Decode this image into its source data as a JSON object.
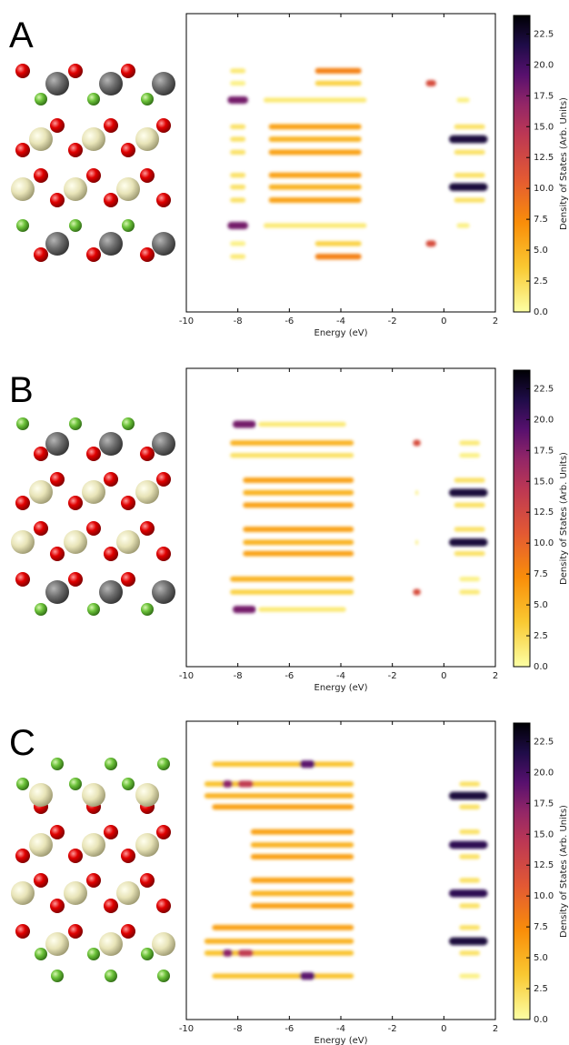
{
  "chart_data": [
    {
      "type": "heatmap",
      "label": "A",
      "xlabel": "Energy (eV)",
      "colorbar_label": "Density of States (Arb. Units)",
      "xlim": [
        -10,
        2
      ],
      "xticks": [
        -10,
        -8,
        -6,
        -4,
        -2,
        0,
        2
      ],
      "ylim": [
        0,
        24
      ],
      "clim": [
        0,
        24
      ],
      "cticks": [
        {
          "value": 0,
          "label": "0.0"
        },
        2.5,
        {
          "value": 5,
          "label": "5.0"
        },
        7.5,
        {
          "value": 10,
          "label": "10.0"
        },
        12.5,
        {
          "value": 15,
          "label": "15.0"
        },
        17.5,
        {
          "value": 20,
          "label": "20.0"
        },
        22.5
      ],
      "bands": [
        {
          "y": 19.4,
          "xmin": -8.3,
          "xmax": -7.7,
          "value": 1.5
        },
        {
          "y": 19.4,
          "xmin": -5,
          "xmax": -3.2,
          "value": 8
        },
        {
          "y": 18.4,
          "xmin": -8.3,
          "xmax": -7.7,
          "value": 1
        },
        {
          "y": 18.4,
          "xmin": -5,
          "xmax": -3.2,
          "value": 3
        },
        {
          "y": 18.4,
          "xmin": -0.7,
          "xmax": -0.3,
          "value": 12
        },
        {
          "y": 17.05,
          "xmin": -8.4,
          "xmax": -7.6,
          "value": 18
        },
        {
          "y": 17.05,
          "xmin": -7,
          "xmax": -3,
          "value": 1.5
        },
        {
          "y": 17.05,
          "xmin": 0.5,
          "xmax": 1,
          "value": 1
        },
        {
          "y": 14.9,
          "xmin": -8.3,
          "xmax": -7.7,
          "value": 2
        },
        {
          "y": 14.9,
          "xmin": -6.8,
          "xmax": -3.2,
          "value": 6
        },
        {
          "y": 14.9,
          "xmin": 0.4,
          "xmax": 1.6,
          "value": 2
        },
        {
          "y": 13.9,
          "xmin": -8.3,
          "xmax": -7.7,
          "value": 2
        },
        {
          "y": 13.9,
          "xmin": -6.8,
          "xmax": -3.2,
          "value": 5
        },
        {
          "y": 13.9,
          "xmin": 0.2,
          "xmax": 1.7,
          "value": 22
        },
        {
          "y": 12.85,
          "xmin": -8.3,
          "xmax": -7.7,
          "value": 2
        },
        {
          "y": 12.85,
          "xmin": -6.8,
          "xmax": -3.2,
          "value": 6
        },
        {
          "y": 12.85,
          "xmin": 0.4,
          "xmax": 1.6,
          "value": 2
        },
        {
          "y": 11.0,
          "xmin": -8.3,
          "xmax": -7.7,
          "value": 2
        },
        {
          "y": 11.0,
          "xmin": -6.8,
          "xmax": -3.2,
          "value": 6
        },
        {
          "y": 11.0,
          "xmin": 0.4,
          "xmax": 1.6,
          "value": 2
        },
        {
          "y": 10.05,
          "xmin": -8.3,
          "xmax": -7.7,
          "value": 2
        },
        {
          "y": 10.05,
          "xmin": -6.8,
          "xmax": -3.2,
          "value": 5
        },
        {
          "y": 10.05,
          "xmin": 0.2,
          "xmax": 1.7,
          "value": 22
        },
        {
          "y": 9.0,
          "xmin": -8.3,
          "xmax": -7.7,
          "value": 2
        },
        {
          "y": 9.0,
          "xmin": -6.8,
          "xmax": -3.2,
          "value": 6
        },
        {
          "y": 9.0,
          "xmin": 0.4,
          "xmax": 1.6,
          "value": 2
        },
        {
          "y": 6.95,
          "xmin": -8.4,
          "xmax": -7.6,
          "value": 18
        },
        {
          "y": 6.95,
          "xmin": -7,
          "xmax": -3,
          "value": 1.5
        },
        {
          "y": 6.95,
          "xmin": 0.5,
          "xmax": 1,
          "value": 1
        },
        {
          "y": 5.5,
          "xmin": -8.3,
          "xmax": -7.7,
          "value": 1
        },
        {
          "y": 5.5,
          "xmin": -5,
          "xmax": -3.2,
          "value": 3
        },
        {
          "y": 5.5,
          "xmin": -0.7,
          "xmax": -0.3,
          "value": 12
        },
        {
          "y": 4.45,
          "xmin": -8.3,
          "xmax": -7.7,
          "value": 1.5
        },
        {
          "y": 4.45,
          "xmin": -5,
          "xmax": -3.2,
          "value": 8
        }
      ]
    },
    {
      "type": "heatmap",
      "label": "B",
      "xlabel": "Energy (eV)",
      "colorbar_label": "Density of States (Arb. Units)",
      "xlim": [
        -10,
        2
      ],
      "xticks": [
        -10,
        -8,
        -6,
        -4,
        -2,
        0,
        2
      ],
      "ylim": [
        0,
        24
      ],
      "clim": [
        0,
        24
      ],
      "cticks": [
        {
          "value": 0,
          "label": "0.0"
        },
        2.5,
        {
          "value": 5,
          "label": "5.0"
        },
        7.5,
        {
          "value": 10,
          "label": "10.0"
        },
        12.5,
        {
          "value": 15,
          "label": "15.0"
        },
        17.5,
        {
          "value": 20,
          "label": "20.0"
        },
        22.5
      ],
      "bands": [
        {
          "y": 19.5,
          "xmin": -7.2,
          "xmax": -3.8,
          "value": 1.5
        },
        {
          "y": 19.5,
          "xmin": -8.2,
          "xmax": -7.3,
          "value": 18
        },
        {
          "y": 18.0,
          "xmin": -8.3,
          "xmax": -3.5,
          "value": 5
        },
        {
          "y": 18.0,
          "xmin": -1.2,
          "xmax": -0.9,
          "value": 12
        },
        {
          "y": 18.0,
          "xmin": 0.6,
          "xmax": 1.4,
          "value": 1.5
        },
        {
          "y": 17.0,
          "xmin": -8.3,
          "xmax": -3.5,
          "value": 2
        },
        {
          "y": 17.0,
          "xmin": 0.6,
          "xmax": 1.4,
          "value": 1
        },
        {
          "y": 15.0,
          "xmin": -7.8,
          "xmax": -3.5,
          "value": 6
        },
        {
          "y": 15.0,
          "xmin": 0.4,
          "xmax": 1.6,
          "value": 2
        },
        {
          "y": 14.0,
          "xmin": -7.8,
          "xmax": -3.5,
          "value": 5
        },
        {
          "y": 14.0,
          "xmin": -1.1,
          "xmax": -1,
          "value": 1
        },
        {
          "y": 14.0,
          "xmin": 0.2,
          "xmax": 1.7,
          "value": 22
        },
        {
          "y": 13.0,
          "xmin": -7.8,
          "xmax": -3.5,
          "value": 6
        },
        {
          "y": 13.0,
          "xmin": 0.4,
          "xmax": 1.6,
          "value": 2
        },
        {
          "y": 11.05,
          "xmin": -7.8,
          "xmax": -3.5,
          "value": 6
        },
        {
          "y": 11.05,
          "xmin": 0.4,
          "xmax": 1.6,
          "value": 2
        },
        {
          "y": 10.0,
          "xmin": -7.8,
          "xmax": -3.5,
          "value": 5
        },
        {
          "y": 10.0,
          "xmin": -1.1,
          "xmax": -1,
          "value": 1
        },
        {
          "y": 10.0,
          "xmin": 0.2,
          "xmax": 1.7,
          "value": 22
        },
        {
          "y": 9.1,
          "xmin": -7.8,
          "xmax": -3.5,
          "value": 6
        },
        {
          "y": 9.1,
          "xmin": 0.4,
          "xmax": 1.6,
          "value": 2
        },
        {
          "y": 7.05,
          "xmin": -8.3,
          "xmax": -3.5,
          "value": 5
        },
        {
          "y": 7.05,
          "xmin": 0.6,
          "xmax": 1.4,
          "value": 1
        },
        {
          "y": 6.0,
          "xmin": -8.3,
          "xmax": -3.5,
          "value": 3
        },
        {
          "y": 6.0,
          "xmin": -1.2,
          "xmax": -0.9,
          "value": 12
        },
        {
          "y": 6.0,
          "xmin": 0.6,
          "xmax": 1.4,
          "value": 1.5
        },
        {
          "y": 4.6,
          "xmin": -7.2,
          "xmax": -3.8,
          "value": 1.5
        },
        {
          "y": 4.6,
          "xmin": -8.2,
          "xmax": -7.3,
          "value": 18
        }
      ]
    },
    {
      "type": "heatmap",
      "label": "C",
      "xlabel": "Energy (eV)",
      "colorbar_label": "Density of States (Arb. Units)",
      "xlim": [
        -10,
        2
      ],
      "xticks": [
        -10,
        -8,
        -6,
        -4,
        -2,
        0,
        2
      ],
      "ylim": [
        0,
        24
      ],
      "clim": [
        0,
        24
      ],
      "cticks": [
        {
          "value": 0,
          "label": "0.0"
        },
        2.5,
        {
          "value": 5,
          "label": "5.0"
        },
        7.5,
        {
          "value": 10,
          "label": "10.0"
        },
        12.5,
        {
          "value": 15,
          "label": "15.0"
        },
        17.5,
        {
          "value": 20,
          "label": "20.0"
        },
        22.5
      ],
      "bands": [
        {
          "y": 20.55,
          "xmin": -9,
          "xmax": -3.5,
          "value": 4
        },
        {
          "y": 20.55,
          "xmin": -5.6,
          "xmax": -5,
          "value": 19
        },
        {
          "y": 18.95,
          "xmin": -9.3,
          "xmax": -3.5,
          "value": 4
        },
        {
          "y": 18.95,
          "xmin": -8.6,
          "xmax": -8.2,
          "value": 17
        },
        {
          "y": 18.95,
          "xmin": -8,
          "xmax": -7.4,
          "value": 14
        },
        {
          "y": 18.95,
          "xmin": 0.6,
          "xmax": 1.4,
          "value": 2
        },
        {
          "y": 18.0,
          "xmin": -9.3,
          "xmax": -3.5,
          "value": 5
        },
        {
          "y": 18.0,
          "xmin": 0.2,
          "xmax": 1.7,
          "value": 22
        },
        {
          "y": 17.1,
          "xmin": -9,
          "xmax": -3.5,
          "value": 6
        },
        {
          "y": 17.1,
          "xmin": 0.6,
          "xmax": 1.4,
          "value": 2
        },
        {
          "y": 15.1,
          "xmin": -7.5,
          "xmax": -3.5,
          "value": 6
        },
        {
          "y": 15.1,
          "xmin": 0.6,
          "xmax": 1.4,
          "value": 2
        },
        {
          "y": 14.05,
          "xmin": -7.5,
          "xmax": -3.5,
          "value": 5
        },
        {
          "y": 14.05,
          "xmin": 0.2,
          "xmax": 1.7,
          "value": 21
        },
        {
          "y": 13.1,
          "xmin": -7.5,
          "xmax": -3.5,
          "value": 6
        },
        {
          "y": 13.1,
          "xmin": 0.6,
          "xmax": 1.4,
          "value": 2
        },
        {
          "y": 11.2,
          "xmin": -7.5,
          "xmax": -3.5,
          "value": 6
        },
        {
          "y": 11.2,
          "xmin": 0.6,
          "xmax": 1.4,
          "value": 2
        },
        {
          "y": 10.15,
          "xmin": -7.5,
          "xmax": -3.5,
          "value": 5
        },
        {
          "y": 10.15,
          "xmin": 0.2,
          "xmax": 1.7,
          "value": 21
        },
        {
          "y": 9.15,
          "xmin": -7.5,
          "xmax": -3.5,
          "value": 6
        },
        {
          "y": 9.15,
          "xmin": 0.6,
          "xmax": 1.4,
          "value": 2
        },
        {
          "y": 7.4,
          "xmin": -9,
          "xmax": -3.5,
          "value": 6
        },
        {
          "y": 7.4,
          "xmin": 0.6,
          "xmax": 1.4,
          "value": 2
        },
        {
          "y": 6.3,
          "xmin": -9.3,
          "xmax": -3.5,
          "value": 5
        },
        {
          "y": 6.3,
          "xmin": 0.2,
          "xmax": 1.7,
          "value": 22
        },
        {
          "y": 5.35,
          "xmin": -9.3,
          "xmax": -3.5,
          "value": 4
        },
        {
          "y": 5.35,
          "xmin": -8.6,
          "xmax": -8.2,
          "value": 17
        },
        {
          "y": 5.35,
          "xmin": -8,
          "xmax": -7.4,
          "value": 14
        },
        {
          "y": 5.35,
          "xmin": 0.6,
          "xmax": 1.4,
          "value": 2
        },
        {
          "y": 3.5,
          "xmin": -9,
          "xmax": -3.5,
          "value": 4
        },
        {
          "y": 3.5,
          "xmin": -5.6,
          "xmax": -5,
          "value": 19
        },
        {
          "y": 3.5,
          "xmin": 0.6,
          "xmax": 1.4,
          "value": 1
        }
      ]
    }
  ]
}
